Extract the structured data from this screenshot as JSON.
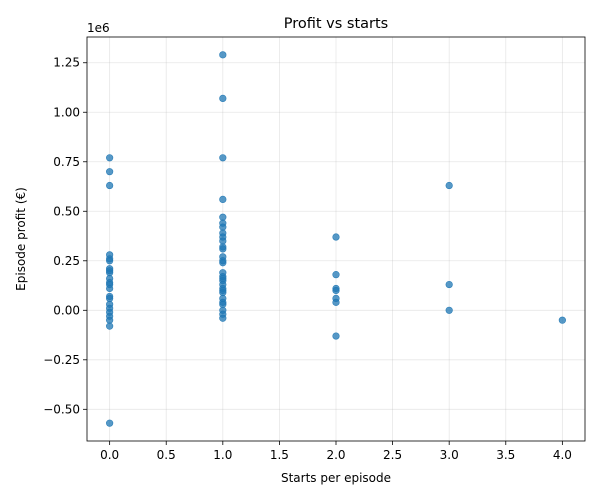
{
  "chart_data": {
    "type": "scatter",
    "title": "Profit vs starts",
    "xlabel": "Starts per episode",
    "ylabel": "Episode profit (€)",
    "y_offset_label": "1e6",
    "xlim": [
      -0.2,
      4.2
    ],
    "ylim": [
      -0.66,
      1.38
    ],
    "xticks": [
      0.0,
      0.5,
      1.0,
      1.5,
      2.0,
      2.5,
      3.0,
      3.5,
      4.0
    ],
    "xtick_labels": [
      "0.0",
      "0.5",
      "1.0",
      "1.5",
      "2.0",
      "2.5",
      "3.0",
      "3.5",
      "4.0"
    ],
    "yticks": [
      -0.5,
      -0.25,
      0.0,
      0.25,
      0.5,
      0.75,
      1.0,
      1.25
    ],
    "ytick_labels": [
      "−0.50",
      "−0.25",
      "0.00",
      "0.25",
      "0.50",
      "0.75",
      "1.00",
      "1.25"
    ],
    "grid": true,
    "color": "#1f77b4",
    "points": [
      {
        "x": 0,
        "y": 0.77
      },
      {
        "x": 0,
        "y": 0.7
      },
      {
        "x": 0,
        "y": 0.63
      },
      {
        "x": 0,
        "y": 0.28
      },
      {
        "x": 0,
        "y": 0.26
      },
      {
        "x": 0,
        "y": 0.25
      },
      {
        "x": 0,
        "y": 0.21
      },
      {
        "x": 0,
        "y": 0.2
      },
      {
        "x": 0,
        "y": 0.19
      },
      {
        "x": 0,
        "y": 0.16
      },
      {
        "x": 0,
        "y": 0.14
      },
      {
        "x": 0,
        "y": 0.13
      },
      {
        "x": 0,
        "y": 0.11
      },
      {
        "x": 0,
        "y": 0.07
      },
      {
        "x": 0,
        "y": 0.06
      },
      {
        "x": 0,
        "y": 0.03
      },
      {
        "x": 0,
        "y": 0.01
      },
      {
        "x": 0,
        "y": -0.01
      },
      {
        "x": 0,
        "y": -0.03
      },
      {
        "x": 0,
        "y": -0.05
      },
      {
        "x": 0,
        "y": -0.08
      },
      {
        "x": 0,
        "y": -0.57
      },
      {
        "x": 1,
        "y": 1.29
      },
      {
        "x": 1,
        "y": 1.07
      },
      {
        "x": 1,
        "y": 0.77
      },
      {
        "x": 1,
        "y": 0.56
      },
      {
        "x": 1,
        "y": 0.47
      },
      {
        "x": 1,
        "y": 0.44
      },
      {
        "x": 1,
        "y": 0.42
      },
      {
        "x": 1,
        "y": 0.39
      },
      {
        "x": 1,
        "y": 0.37
      },
      {
        "x": 1,
        "y": 0.35
      },
      {
        "x": 1,
        "y": 0.32
      },
      {
        "x": 1,
        "y": 0.31
      },
      {
        "x": 1,
        "y": 0.27
      },
      {
        "x": 1,
        "y": 0.25
      },
      {
        "x": 1,
        "y": 0.24
      },
      {
        "x": 1,
        "y": 0.19
      },
      {
        "x": 1,
        "y": 0.17
      },
      {
        "x": 1,
        "y": 0.16
      },
      {
        "x": 1,
        "y": 0.15
      },
      {
        "x": 1,
        "y": 0.13
      },
      {
        "x": 1,
        "y": 0.11
      },
      {
        "x": 1,
        "y": 0.1
      },
      {
        "x": 1,
        "y": 0.09
      },
      {
        "x": 1,
        "y": 0.06
      },
      {
        "x": 1,
        "y": 0.04
      },
      {
        "x": 1,
        "y": 0.03
      },
      {
        "x": 1,
        "y": 0.0
      },
      {
        "x": 1,
        "y": -0.02
      },
      {
        "x": 1,
        "y": -0.04
      },
      {
        "x": 2,
        "y": 0.37
      },
      {
        "x": 2,
        "y": 0.18
      },
      {
        "x": 2,
        "y": 0.11
      },
      {
        "x": 2,
        "y": 0.1
      },
      {
        "x": 2,
        "y": 0.06
      },
      {
        "x": 2,
        "y": 0.04
      },
      {
        "x": 2,
        "y": -0.13
      },
      {
        "x": 3,
        "y": 0.63
      },
      {
        "x": 3,
        "y": 0.13
      },
      {
        "x": 3,
        "y": 0.0
      },
      {
        "x": 4,
        "y": -0.05
      }
    ]
  }
}
